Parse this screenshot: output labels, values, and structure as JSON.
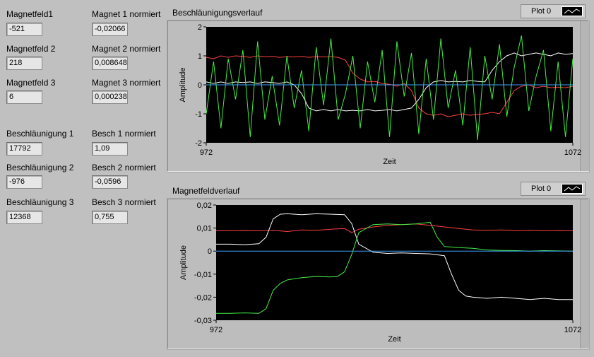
{
  "indicators": [
    {
      "label": "Magnetfeld1",
      "value": "-521"
    },
    {
      "label": "Magnetfeld 2",
      "value": "218"
    },
    {
      "label": "Magnetfeld 3",
      "value": "6"
    },
    {
      "label": "Magnet 1 normiert",
      "value": "-0,02066"
    },
    {
      "label": "Magnet 2 normiert",
      "value": "0,008648"
    },
    {
      "label": "Magnet 3 normiert",
      "value": "0,000238"
    },
    {
      "label": "Beschläunigung 1",
      "value": "17792"
    },
    {
      "label": "Beschläunigung 2",
      "value": "-976"
    },
    {
      "label": "Beschläunigung 3",
      "value": "12368"
    },
    {
      "label": "Besch 1 normiert",
      "value": "1,09"
    },
    {
      "label": "Besch 2 normiert",
      "value": "-0,0596"
    },
    {
      "label": "Besch 3 normiert",
      "value": "0,755"
    }
  ],
  "chart_data": [
    {
      "type": "line",
      "title": "Beschläunigungsverlauf",
      "legend_label": "Plot 0",
      "xlabel": "Zeit",
      "ylabel": "Amplitude",
      "xlim": [
        972,
        1072
      ],
      "ylim": [
        -2,
        2
      ],
      "x_ticks": [
        "972",
        "1072"
      ],
      "y_ticks": [
        {
          "v": 2,
          "t": "2"
        },
        {
          "v": 1,
          "t": "1"
        },
        {
          "v": 0,
          "t": "0"
        },
        {
          "v": -1,
          "t": "-1"
        },
        {
          "v": -2,
          "t": "-2"
        }
      ],
      "grid": false,
      "series": [
        {
          "color": "#ff4040",
          "x": [
            972,
            974,
            976,
            978,
            980,
            982,
            984,
            986,
            988,
            990,
            992,
            994,
            996,
            998,
            1000,
            1002,
            1004,
            1006,
            1008,
            1010,
            1012,
            1014,
            1016,
            1018,
            1020,
            1022,
            1024,
            1026,
            1028,
            1030,
            1032,
            1034,
            1036,
            1038,
            1040,
            1042,
            1044,
            1046,
            1048,
            1050,
            1052,
            1054,
            1056,
            1058,
            1060,
            1062,
            1064,
            1066,
            1068,
            1070,
            1072
          ],
          "y": [
            0.95,
            0.9,
            1.0,
            0.95,
            1.0,
            0.98,
            0.95,
            1.0,
            0.97,
            0.98,
            0.95,
            0.97,
            0.96,
            0.98,
            0.95,
            0.97,
            0.96,
            0.97,
            0.95,
            0.85,
            0.4,
            0.2,
            0.1,
            0.12,
            0.05,
            0.02,
            -0.05,
            0.05,
            -0.2,
            -0.8,
            -1.0,
            -1.05,
            -1.0,
            -1.1,
            -1.05,
            -1.0,
            -1.05,
            -1.02,
            -1.0,
            -0.95,
            -1.0,
            -0.6,
            -0.2,
            -0.05,
            0.0,
            -0.1,
            -0.05,
            -0.1,
            -0.08,
            -0.1,
            -0.05
          ]
        },
        {
          "color": "#ffffff",
          "x": [
            972,
            974,
            976,
            978,
            980,
            982,
            984,
            986,
            988,
            990,
            992,
            994,
            996,
            998,
            1000,
            1002,
            1004,
            1006,
            1008,
            1010,
            1012,
            1014,
            1016,
            1018,
            1020,
            1022,
            1024,
            1026,
            1028,
            1030,
            1032,
            1034,
            1036,
            1038,
            1040,
            1042,
            1044,
            1046,
            1048,
            1050,
            1052,
            1054,
            1056,
            1058,
            1060,
            1062,
            1064,
            1066,
            1068,
            1070,
            1072
          ],
          "y": [
            0.1,
            0.05,
            0.1,
            0.05,
            0.1,
            0.08,
            0.1,
            0.05,
            0.1,
            0.08,
            0.05,
            0.1,
            0.0,
            -0.3,
            -0.8,
            -0.9,
            -0.85,
            -0.9,
            -0.85,
            -0.9,
            -0.88,
            -0.9,
            -0.85,
            -0.9,
            -0.88,
            -0.85,
            -0.9,
            -0.85,
            -0.8,
            -0.5,
            -0.1,
            0.1,
            0.15,
            0.1,
            0.12,
            0.1,
            0.15,
            0.12,
            0.1,
            0.5,
            0.8,
            1.0,
            1.1,
            1.0,
            1.05,
            1.1,
            1.05,
            1.0,
            1.1,
            1.05,
            1.08
          ]
        },
        {
          "color": "#44ee44",
          "x": [
            972,
            974,
            976,
            978,
            980,
            982,
            984,
            986,
            988,
            990,
            992,
            994,
            996,
            998,
            1000,
            1002,
            1004,
            1006,
            1008,
            1010,
            1012,
            1014,
            1016,
            1018,
            1020,
            1022,
            1024,
            1026,
            1028,
            1030,
            1032,
            1034,
            1036,
            1038,
            1040,
            1042,
            1044,
            1046,
            1048,
            1050,
            1052,
            1054,
            1056,
            1058,
            1060,
            1062,
            1064,
            1066,
            1068,
            1070,
            1072
          ],
          "y": [
            -1.0,
            0.8,
            -1.5,
            0.9,
            -0.5,
            1.2,
            -1.8,
            1.5,
            -1.2,
            0.3,
            -1.4,
            1.0,
            -0.8,
            0.5,
            -1.6,
            1.3,
            -0.7,
            1.6,
            -1.2,
            -0.3,
            1.0,
            -1.5,
            0.8,
            -0.6,
            1.2,
            -1.8,
            1.5,
            -0.4,
            1.1,
            -1.7,
            0.9,
            -1.2,
            1.6,
            -0.8,
            0.5,
            -1.4,
            1.3,
            -1.9,
            1.0,
            -0.5,
            1.4,
            -1.1,
            0.6,
            1.7,
            -0.9,
            0.3,
            1.2,
            -1.6,
            0.8,
            -1.8,
            0.9
          ]
        },
        {
          "color": "#3fa0ff",
          "x": [
            972,
            1072
          ],
          "y": [
            0,
            0
          ]
        }
      ]
    },
    {
      "type": "line",
      "title": "Magnetfeldverlauf",
      "legend_label": "Plot 0",
      "xlabel": "Zeit",
      "ylabel": "Amplitude",
      "xlim": [
        972,
        1072
      ],
      "ylim": [
        -0.03,
        0.02
      ],
      "x_ticks": [
        "972",
        "1072"
      ],
      "y_ticks": [
        {
          "v": 0.02,
          "t": "0,02"
        },
        {
          "v": 0.01,
          "t": "0,01"
        },
        {
          "v": 0,
          "t": "0"
        },
        {
          "v": -0.01,
          "t": "-0,01"
        },
        {
          "v": -0.02,
          "t": "-0,02"
        },
        {
          "v": -0.03,
          "t": "-0,03"
        }
      ],
      "grid": false,
      "series": [
        {
          "color": "#ff4040",
          "x": [
            972,
            976,
            980,
            984,
            988,
            992,
            996,
            1000,
            1004,
            1008,
            1010,
            1012,
            1016,
            1020,
            1024,
            1028,
            1032,
            1036,
            1040,
            1044,
            1048,
            1052,
            1056,
            1060,
            1064,
            1068,
            1072
          ],
          "y": [
            0.0088,
            0.0088,
            0.0089,
            0.0088,
            0.009,
            0.0085,
            0.0092,
            0.009,
            0.0095,
            0.0098,
            0.008,
            0.0095,
            0.0105,
            0.0112,
            0.0115,
            0.0118,
            0.0112,
            0.0105,
            0.0098,
            0.0092,
            0.009,
            0.0092,
            0.0088,
            0.009,
            0.0088,
            0.0089,
            0.0088
          ]
        },
        {
          "color": "#ffffff",
          "x": [
            972,
            976,
            980,
            984,
            986,
            988,
            990,
            992,
            996,
            1000,
            1004,
            1008,
            1010,
            1012,
            1016,
            1020,
            1024,
            1028,
            1032,
            1036,
            1038,
            1040,
            1042,
            1044,
            1048,
            1052,
            1056,
            1060,
            1064,
            1068,
            1072
          ],
          "y": [
            0.003,
            0.003,
            0.0028,
            0.0032,
            0.006,
            0.014,
            0.016,
            0.0162,
            0.0158,
            0.0162,
            0.016,
            0.0158,
            0.012,
            0.003,
            -0.0005,
            -0.001,
            -0.0008,
            -0.001,
            -0.0012,
            -0.002,
            -0.01,
            -0.017,
            -0.0195,
            -0.02,
            -0.0205,
            -0.02,
            -0.0205,
            -0.021,
            -0.0205,
            -0.021,
            -0.021
          ]
        },
        {
          "color": "#44ee44",
          "x": [
            972,
            976,
            980,
            984,
            986,
            988,
            990,
            992,
            996,
            1000,
            1004,
            1006,
            1008,
            1010,
            1012,
            1016,
            1020,
            1024,
            1028,
            1032,
            1034,
            1036,
            1040,
            1044,
            1048,
            1052,
            1056,
            1060,
            1064,
            1068,
            1072
          ],
          "y": [
            -0.027,
            -0.027,
            -0.0268,
            -0.027,
            -0.025,
            -0.017,
            -0.014,
            -0.0125,
            -0.0115,
            -0.011,
            -0.0112,
            -0.011,
            -0.009,
            -0.0015,
            0.008,
            0.0115,
            0.0118,
            0.0115,
            0.0118,
            0.0125,
            0.006,
            0.002,
            0.0015,
            0.0012,
            0.0005,
            0.0003,
            0.0002,
            0.0,
            0.0002,
            0.0001,
            0.0
          ]
        },
        {
          "color": "#3fa0ff",
          "x": [
            972,
            1072
          ],
          "y": [
            0,
            0
          ]
        }
      ]
    }
  ]
}
